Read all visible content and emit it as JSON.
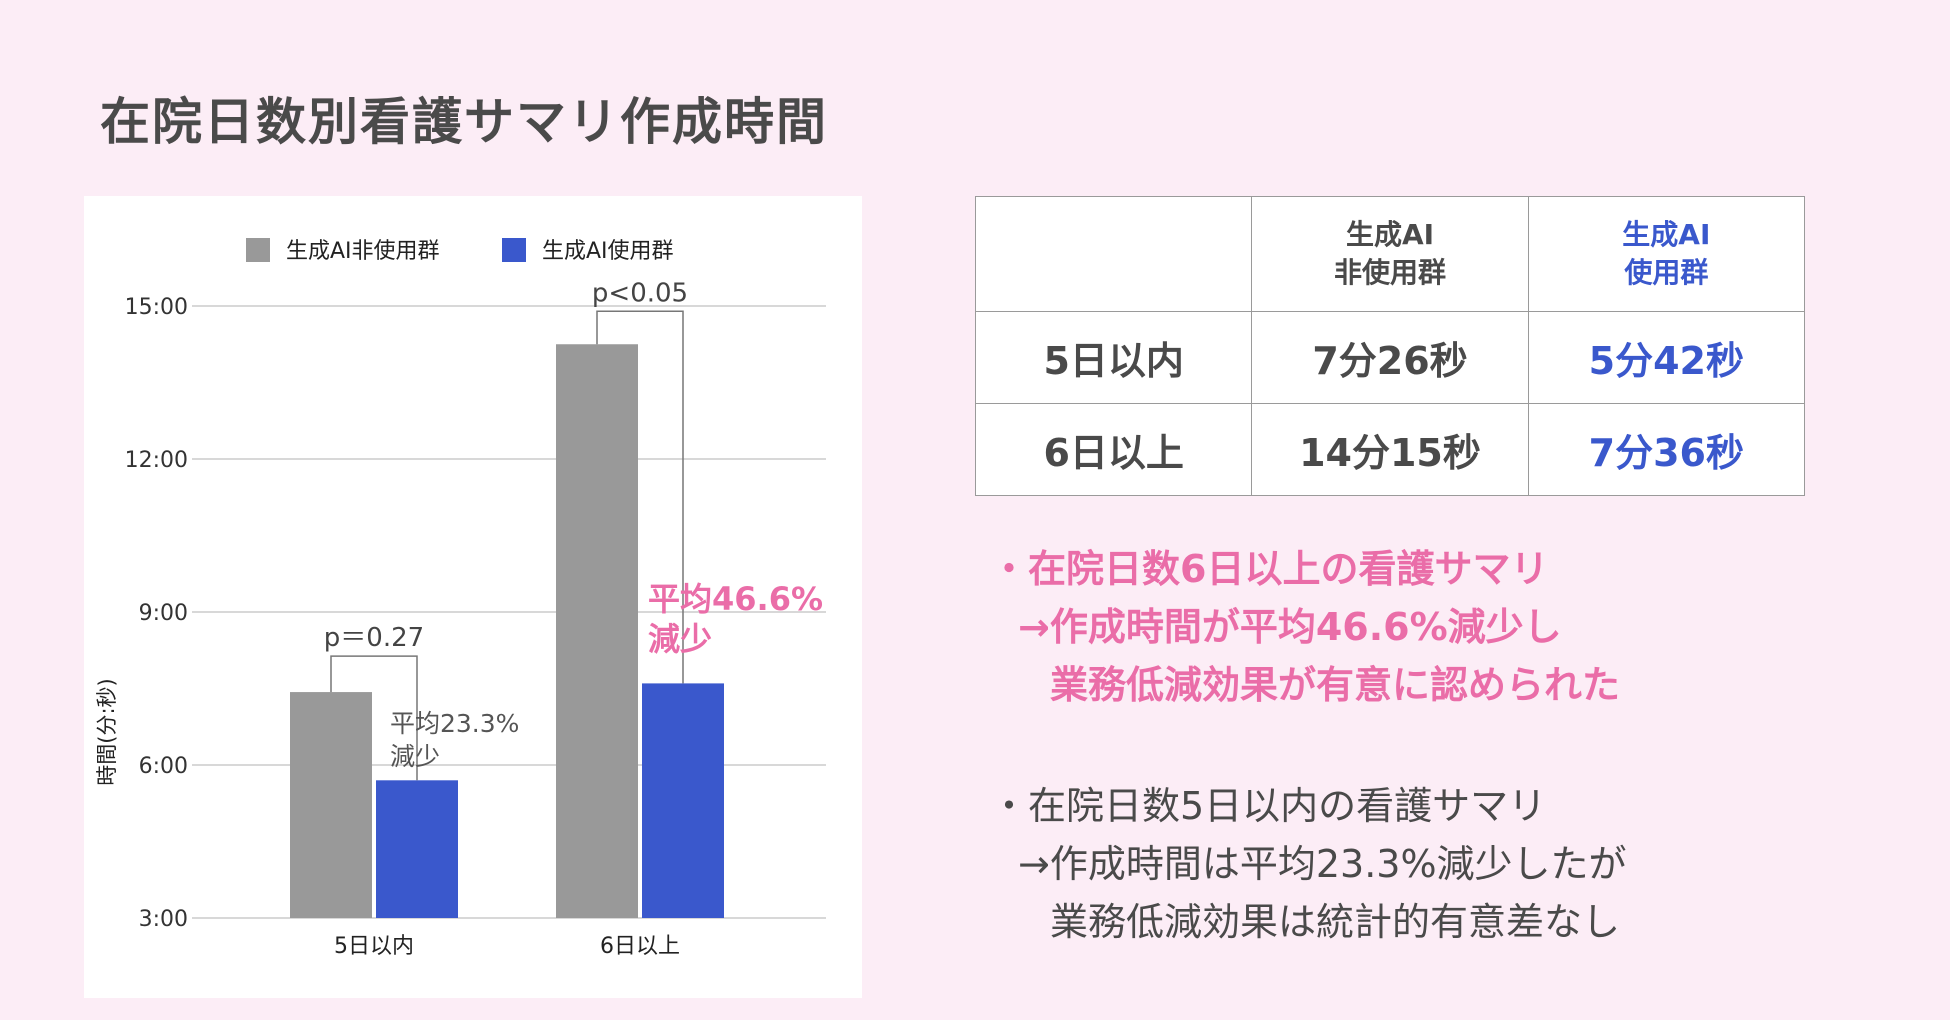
{
  "title": "在院日数別看護サマリ作成時間",
  "colors": {
    "background": "#fcedf6",
    "series_nonuse": "#999999",
    "series_use": "#3a58cc",
    "highlight_pink": "#ea6da8",
    "text": "#4a4a4a"
  },
  "chart_data": {
    "type": "bar",
    "categories": [
      "5日以内",
      "6日以上"
    ],
    "series": [
      {
        "name": "生成AI非使用群",
        "values": [
          7.43,
          14.25
        ],
        "color": "#999999"
      },
      {
        "name": "生成AI使用群",
        "values": [
          5.7,
          7.6
        ],
        "color": "#3a58cc"
      }
    ],
    "ylabel": "時間(分:秒)",
    "ylim": [
      3,
      15
    ],
    "yticks": [
      3,
      6,
      9,
      12,
      15
    ],
    "ytick_labels": [
      "3:00",
      "6:00",
      "9:00",
      "12:00",
      "15:00"
    ],
    "grid": true,
    "legend_position": "top",
    "annotations": {
      "p_values": [
        "p＝0.27",
        "p<0.05"
      ],
      "reductions": [
        "平均23.3%\n減少",
        "平均46.6%\n減少"
      ]
    }
  },
  "table": {
    "headers": [
      "",
      "生成AI\n非使用群",
      "生成AI\n使用群"
    ],
    "rows": [
      [
        "5日以内",
        "7分26秒",
        "5分42秒"
      ],
      [
        "6日以上",
        "14分15秒",
        "7分36秒"
      ]
    ]
  },
  "findings": {
    "highlight": [
      "・在院日数6日以上の看護サマリ",
      "→作成時間が平均46.6%減少し",
      "業務低減効果が有意に認められた"
    ],
    "normal": [
      "・在院日数5日以内の看護サマリ",
      "→作成時間は平均23.3%減少したが",
      "業務低減効果は統計的有意差なし"
    ]
  }
}
